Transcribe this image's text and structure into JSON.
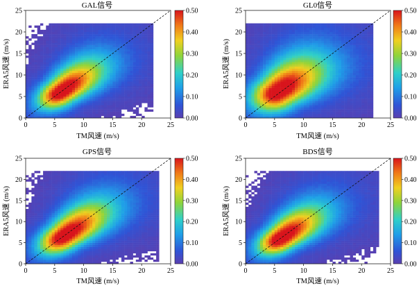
{
  "figure": {
    "panels": [
      {
        "title": "GAL信号",
        "xlabel": "TM风速 (m/s)",
        "ylabel": "ERA5风速 (m/s)"
      },
      {
        "title": "GL0信号",
        "xlabel": "TM风速 (m/s)",
        "ylabel": "ERA5风速 (m/s)"
      },
      {
        "title": "GPS信号",
        "xlabel": "TM风速 (m/s)",
        "ylabel": "ERA5风速 (m/s)"
      },
      {
        "title": "BDS信号",
        "xlabel": "TM风速 (m/s)",
        "ylabel": "ERA5风速 (m/s)"
      }
    ]
  },
  "chart_data": [
    {
      "type": "heatmap",
      "title": "GAL信号",
      "xlabel": "TM风速 (m/s)",
      "ylabel": "ERA5风速 (m/s)",
      "xlim": [
        0,
        25
      ],
      "ylim": [
        0,
        25
      ],
      "xticks": [
        0,
        5,
        10,
        15,
        20,
        25
      ],
      "yticks": [
        0,
        5,
        10,
        15,
        20,
        25
      ],
      "reference_line": "y = x (dashed)",
      "colorbar": {
        "range": [
          0.0,
          0.5
        ],
        "ticks": [
          "0.00",
          "0.10",
          "0.20",
          "0.30",
          "0.40",
          "0.50"
        ]
      },
      "density": {
        "peak": [
          6,
          6
        ],
        "spread_along": 4.2,
        "spread_across": 2.0,
        "extent_x": [
          0,
          22
        ],
        "extent_y": [
          0,
          22
        ]
      }
    },
    {
      "type": "heatmap",
      "title": "GL0信号",
      "xlabel": "TM风速 (m/s)",
      "ylabel": "ERA5风速 (m/s)",
      "xlim": [
        0,
        25
      ],
      "ylim": [
        0,
        25
      ],
      "xticks": [
        0,
        5,
        10,
        15,
        20,
        25
      ],
      "yticks": [
        0,
        5,
        10,
        15,
        20,
        25
      ],
      "reference_line": "y = x (dashed)",
      "colorbar": {
        "range": [
          0.0,
          0.5
        ],
        "ticks": [
          "0.00",
          "0.10",
          "0.20",
          "0.30",
          "0.40",
          "0.50"
        ]
      },
      "density": {
        "peak": [
          5.5,
          6
        ],
        "spread_along": 4.5,
        "spread_across": 2.6,
        "extent_x": [
          0,
          22
        ],
        "extent_y": [
          0,
          22
        ]
      }
    },
    {
      "type": "heatmap",
      "title": "GPS信号",
      "xlabel": "TM风速 (m/s)",
      "ylabel": "ERA5风速 (m/s)",
      "xlim": [
        0,
        25
      ],
      "ylim": [
        0,
        25
      ],
      "xticks": [
        0,
        5,
        10,
        15,
        20,
        25
      ],
      "yticks": [
        0,
        5,
        10,
        15,
        20,
        25
      ],
      "reference_line": "y = x (dashed)",
      "colorbar": {
        "range": [
          0.0,
          0.5
        ],
        "ticks": [
          "0.00",
          "0.10",
          "0.20",
          "0.30",
          "0.40",
          "0.50"
        ]
      },
      "density": {
        "peak": [
          6.5,
          6.5
        ],
        "spread_along": 4.6,
        "spread_across": 2.1,
        "extent_x": [
          0,
          23
        ],
        "extent_y": [
          0,
          22
        ]
      }
    },
    {
      "type": "heatmap",
      "title": "BDS信号",
      "xlabel": "TM风速 (m/s)",
      "ylabel": "ERA5风速 (m/s)",
      "xlim": [
        0,
        25
      ],
      "ylim": [
        0,
        25
      ],
      "xticks": [
        0,
        5,
        10,
        15,
        20,
        25
      ],
      "yticks": [
        0,
        5,
        10,
        15,
        20,
        25
      ],
      "reference_line": "y = x (dashed)",
      "colorbar": {
        "range": [
          0.0,
          0.5
        ],
        "ticks": [
          "0.00",
          "0.10",
          "0.20",
          "0.30",
          "0.40",
          "0.50"
        ]
      },
      "density": {
        "peak": [
          6,
          6
        ],
        "spread_along": 4.3,
        "spread_across": 2.0,
        "extent_x": [
          0,
          23
        ],
        "extent_y": [
          0,
          22
        ]
      }
    }
  ]
}
